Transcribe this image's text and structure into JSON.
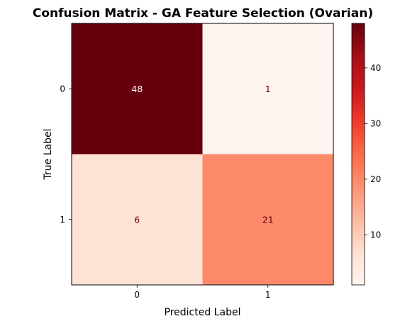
{
  "chart_data": {
    "type": "heatmap",
    "title": "Confusion Matrix - GA Feature Selection (Ovarian)",
    "xlabel": "Predicted Label",
    "ylabel": "True Label",
    "x_categories": [
      "0",
      "1"
    ],
    "y_categories": [
      "0",
      "1"
    ],
    "values": [
      [
        48,
        1
      ],
      [
        6,
        21
      ]
    ],
    "colormap": "Reds",
    "colorbar": {
      "range": [
        1,
        48
      ],
      "ticks": [
        "10",
        "20",
        "30",
        "40"
      ],
      "tick_values": [
        10,
        20,
        30,
        40
      ]
    },
    "colors": {
      "cell_00": "#67000d",
      "cell_01": "#fff5f0",
      "cell_10": "#fee2d5",
      "cell_11": "#fc8a6a",
      "light_text": "#ffffff",
      "dark_text": "#67000d"
    },
    "grid": false
  }
}
